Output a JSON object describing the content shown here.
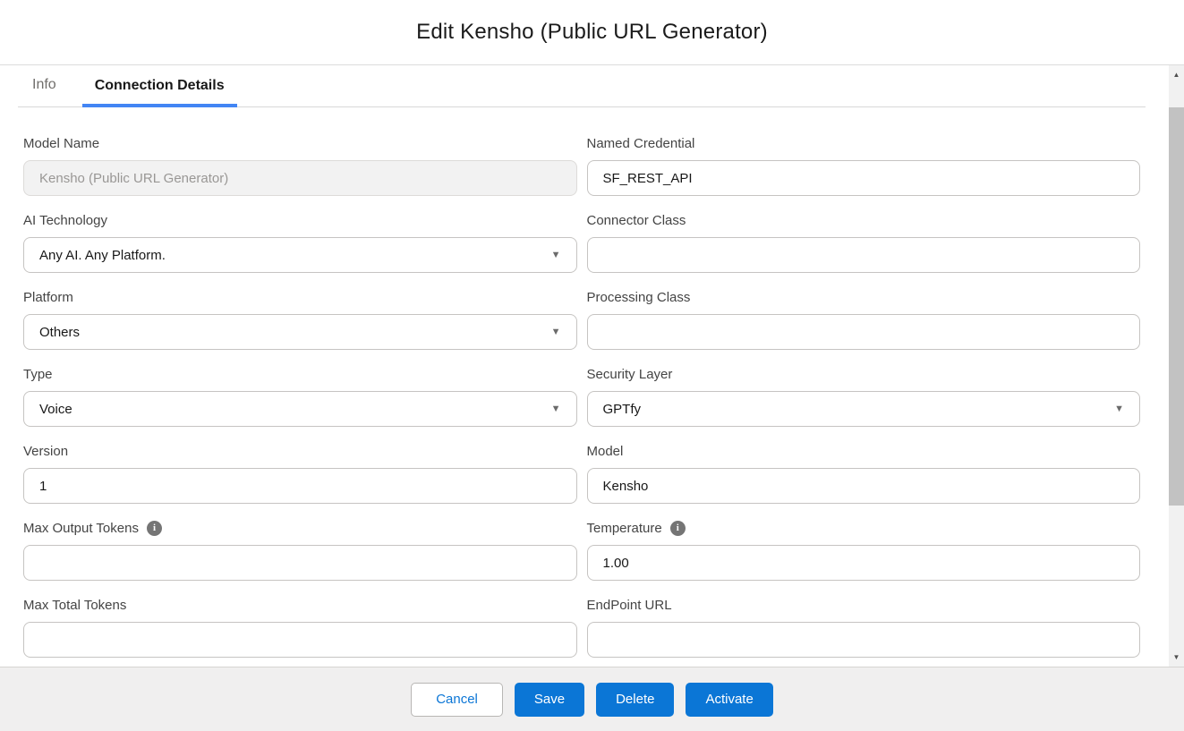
{
  "modal": {
    "title": "Edit Kensho (Public URL Generator)"
  },
  "tabs": [
    {
      "id": "info",
      "label": "Info",
      "active": false
    },
    {
      "id": "connection-details",
      "label": "Connection Details",
      "active": true
    }
  ],
  "form": {
    "left": [
      {
        "label": "Model Name",
        "value": "Kensho (Public URL Generator)",
        "type": "text",
        "disabled": true,
        "info": false
      },
      {
        "label": "AI Technology",
        "value": "Any AI. Any Platform.",
        "type": "select",
        "disabled": false,
        "info": false
      },
      {
        "label": "Platform",
        "value": "Others",
        "type": "select",
        "disabled": false,
        "info": false
      },
      {
        "label": "Type",
        "value": "Voice",
        "type": "select",
        "disabled": false,
        "info": false
      },
      {
        "label": "Version",
        "value": "1",
        "type": "text",
        "disabled": false,
        "info": false
      },
      {
        "label": "Max Output Tokens",
        "value": "",
        "type": "text",
        "disabled": false,
        "info": true
      },
      {
        "label": "Max Total Tokens",
        "value": "",
        "type": "text",
        "disabled": false,
        "info": false
      }
    ],
    "right": [
      {
        "label": "Named Credential",
        "value": "SF_REST_API",
        "type": "text",
        "disabled": false,
        "info": false
      },
      {
        "label": "Connector Class",
        "value": "",
        "type": "text",
        "disabled": false,
        "info": false
      },
      {
        "label": "Processing Class",
        "value": "",
        "type": "text",
        "disabled": false,
        "info": false
      },
      {
        "label": "Security Layer",
        "value": "GPTfy",
        "type": "select",
        "disabled": false,
        "info": false
      },
      {
        "label": "Model",
        "value": "Kensho",
        "type": "text",
        "disabled": false,
        "info": false
      },
      {
        "label": "Temperature",
        "value": "1.00",
        "type": "text",
        "disabled": false,
        "info": true
      },
      {
        "label": "EndPoint URL",
        "value": "",
        "type": "text",
        "disabled": false,
        "info": false
      }
    ]
  },
  "footer": {
    "buttons": [
      {
        "label": "Cancel",
        "style": "neutral"
      },
      {
        "label": "Save",
        "style": "brand"
      },
      {
        "label": "Delete",
        "style": "brand"
      },
      {
        "label": "Activate",
        "style": "brand"
      }
    ]
  },
  "icons": {
    "chevron_down": "▼",
    "info": "i",
    "scroll_up": "▲",
    "scroll_down": "▼"
  },
  "colors": {
    "brand": "#0b76d6",
    "tab_underline": "#4285f4",
    "footer_bg": "#f0efef"
  }
}
